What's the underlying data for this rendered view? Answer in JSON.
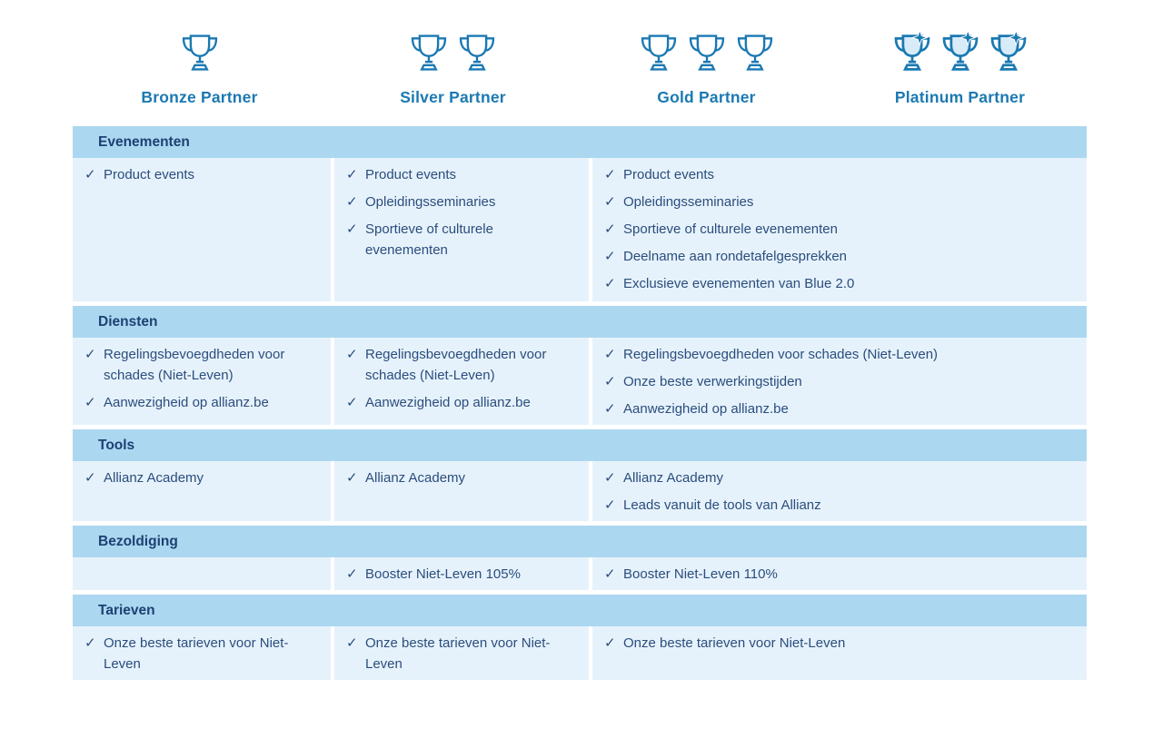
{
  "colors": {
    "accent_blue": "#1b79b2",
    "band_blue": "#acd7f0",
    "cell_blue": "#e6f2fb",
    "body_navy": "#2b4d7d",
    "section_title_navy": "#1c4173"
  },
  "check_glyph": "✓",
  "partners": [
    {
      "label": "Bronze Partner",
      "trophies": 1,
      "variant": "plain"
    },
    {
      "label": "Silver Partner",
      "trophies": 2,
      "variant": "plain"
    },
    {
      "label": "Gold Partner",
      "trophies": 3,
      "variant": "plain"
    },
    {
      "label": "Platinum Partner",
      "trophies": 3,
      "variant": "star"
    }
  ],
  "sections": [
    {
      "title": "Evenementen",
      "columns": [
        [
          "Product events"
        ],
        [
          "Product events",
          "Opleidingsseminaries",
          "Sportieve of culturele evenementen"
        ],
        [
          "Product events",
          "Opleidingsseminaries",
          "Sportieve of culturele evenementen",
          "Deelname aan rondetafelgesprekken",
          "Exclusieve evenementen van Blue 2.0"
        ]
      ]
    },
    {
      "title": "Diensten",
      "columns": [
        [
          "Regelingsbevoegdheden voor schades (Niet-Leven)",
          "Aanwezigheid op allianz.be"
        ],
        [
          "Regelingsbevoegdheden voor schades (Niet-Leven)",
          "Aanwezigheid op allianz.be"
        ],
        [
          "Regelingsbevoegdheden voor schades (Niet-Leven)",
          "Onze beste verwerkingstijden",
          "Aanwezigheid op allianz.be"
        ]
      ]
    },
    {
      "title": "Tools",
      "columns": [
        [
          "Allianz Academy"
        ],
        [
          "Allianz Academy"
        ],
        [
          "Allianz Academy",
          "Leads vanuit de tools van Allianz"
        ]
      ]
    },
    {
      "title": "Bezoldiging",
      "columns": [
        [],
        [
          "Booster Niet-Leven 105%"
        ],
        [
          "Booster Niet-Leven 110%"
        ]
      ]
    },
    {
      "title": "Tarieven",
      "columns": [
        [
          "Onze beste tarieven voor Niet-Leven"
        ],
        [
          "Onze beste tarieven voor Niet-Leven"
        ],
        [
          "Onze beste tarieven voor Niet-Leven"
        ]
      ]
    }
  ]
}
